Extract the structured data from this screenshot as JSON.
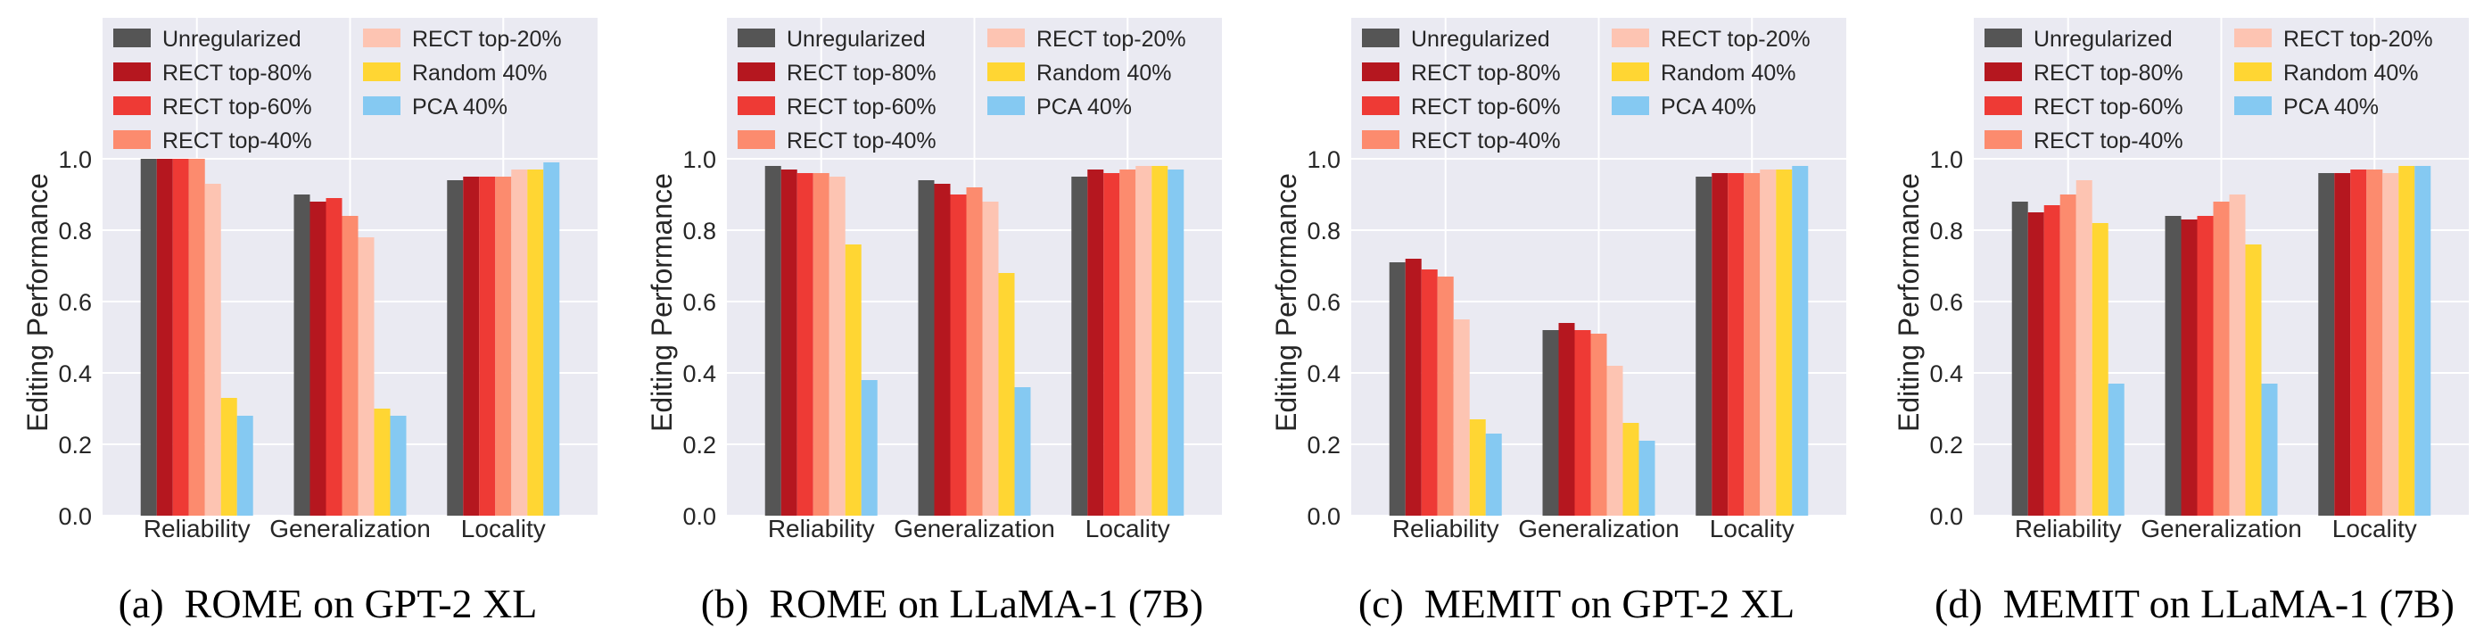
{
  "legend": [
    {
      "name": "Unregularized",
      "color": "#555555"
    },
    {
      "name": "RECT top-80%",
      "color": "#b5171f"
    },
    {
      "name": "RECT top-60%",
      "color": "#ee3a35"
    },
    {
      "name": "RECT top-40%",
      "color": "#fc8b6e"
    },
    {
      "name": "RECT top-20%",
      "color": "#fdc4b2"
    },
    {
      "name": "Random 40%",
      "color": "#ffd633"
    },
    {
      "name": "PCA 40%",
      "color": "#85c9f2"
    }
  ],
  "chart_data": [
    {
      "type": "bar",
      "caption": "(a)  ROME on GPT-2 XL",
      "ylabel": "Editing Performance",
      "xlabel": "",
      "ylim": [
        0,
        1.0
      ],
      "yticks": [
        "0.0",
        "0.2",
        "0.4",
        "0.6",
        "0.8",
        "1.0"
      ],
      "categories": [
        "Reliability",
        "Generalization",
        "Locality"
      ],
      "grid": true,
      "legend_position": "top-left",
      "series": [
        {
          "name": "Unregularized",
          "values": [
            1.0,
            0.9,
            0.94
          ]
        },
        {
          "name": "RECT top-80%",
          "values": [
            1.0,
            0.88,
            0.95
          ]
        },
        {
          "name": "RECT top-60%",
          "values": [
            1.0,
            0.89,
            0.95
          ]
        },
        {
          "name": "RECT top-40%",
          "values": [
            1.0,
            0.84,
            0.95
          ]
        },
        {
          "name": "RECT top-20%",
          "values": [
            0.93,
            0.78,
            0.97
          ]
        },
        {
          "name": "Random 40%",
          "values": [
            0.33,
            0.3,
            0.97
          ]
        },
        {
          "name": "PCA 40%",
          "values": [
            0.28,
            0.28,
            0.99
          ]
        }
      ]
    },
    {
      "type": "bar",
      "caption": "(b)  ROME on LLaMA-1 (7B)",
      "ylabel": "Editing Performance",
      "xlabel": "",
      "ylim": [
        0,
        1.0
      ],
      "yticks": [
        "0.0",
        "0.2",
        "0.4",
        "0.6",
        "0.8",
        "1.0"
      ],
      "categories": [
        "Reliability",
        "Generalization",
        "Locality"
      ],
      "grid": true,
      "legend_position": "top-left",
      "series": [
        {
          "name": "Unregularized",
          "values": [
            0.98,
            0.94,
            0.95
          ]
        },
        {
          "name": "RECT top-80%",
          "values": [
            0.97,
            0.93,
            0.97
          ]
        },
        {
          "name": "RECT top-60%",
          "values": [
            0.96,
            0.9,
            0.96
          ]
        },
        {
          "name": "RECT top-40%",
          "values": [
            0.96,
            0.92,
            0.97
          ]
        },
        {
          "name": "RECT top-20%",
          "values": [
            0.95,
            0.88,
            0.98
          ]
        },
        {
          "name": "Random 40%",
          "values": [
            0.76,
            0.68,
            0.98
          ]
        },
        {
          "name": "PCA 40%",
          "values": [
            0.38,
            0.36,
            0.97
          ]
        }
      ]
    },
    {
      "type": "bar",
      "caption": "(c)  MEMIT on GPT-2 XL",
      "ylabel": "Editing Performance",
      "xlabel": "",
      "ylim": [
        0,
        1.0
      ],
      "yticks": [
        "0.0",
        "0.2",
        "0.4",
        "0.6",
        "0.8",
        "1.0"
      ],
      "categories": [
        "Reliability",
        "Generalization",
        "Locality"
      ],
      "grid": true,
      "legend_position": "top-left",
      "series": [
        {
          "name": "Unregularized",
          "values": [
            0.71,
            0.52,
            0.95
          ]
        },
        {
          "name": "RECT top-80%",
          "values": [
            0.72,
            0.54,
            0.96
          ]
        },
        {
          "name": "RECT top-60%",
          "values": [
            0.69,
            0.52,
            0.96
          ]
        },
        {
          "name": "RECT top-40%",
          "values": [
            0.67,
            0.51,
            0.96
          ]
        },
        {
          "name": "RECT top-20%",
          "values": [
            0.55,
            0.42,
            0.97
          ]
        },
        {
          "name": "Random 40%",
          "values": [
            0.27,
            0.26,
            0.97
          ]
        },
        {
          "name": "PCA 40%",
          "values": [
            0.23,
            0.21,
            0.98
          ]
        }
      ]
    },
    {
      "type": "bar",
      "caption": "(d)  MEMIT on LLaMA-1 (7B)",
      "ylabel": "Editing Performance",
      "xlabel": "",
      "ylim": [
        0,
        1.0
      ],
      "yticks": [
        "0.0",
        "0.2",
        "0.4",
        "0.6",
        "0.8",
        "1.0"
      ],
      "categories": [
        "Reliability",
        "Generalization",
        "Locality"
      ],
      "grid": true,
      "legend_position": "top-left",
      "series": [
        {
          "name": "Unregularized",
          "values": [
            0.88,
            0.84,
            0.96
          ]
        },
        {
          "name": "RECT top-80%",
          "values": [
            0.85,
            0.83,
            0.96
          ]
        },
        {
          "name": "RECT top-60%",
          "values": [
            0.87,
            0.84,
            0.97
          ]
        },
        {
          "name": "RECT top-40%",
          "values": [
            0.9,
            0.88,
            0.97
          ]
        },
        {
          "name": "RECT top-20%",
          "values": [
            0.94,
            0.9,
            0.96
          ]
        },
        {
          "name": "Random 40%",
          "values": [
            0.82,
            0.76,
            0.98
          ]
        },
        {
          "name": "PCA 40%",
          "values": [
            0.37,
            0.37,
            0.98
          ]
        }
      ]
    }
  ]
}
